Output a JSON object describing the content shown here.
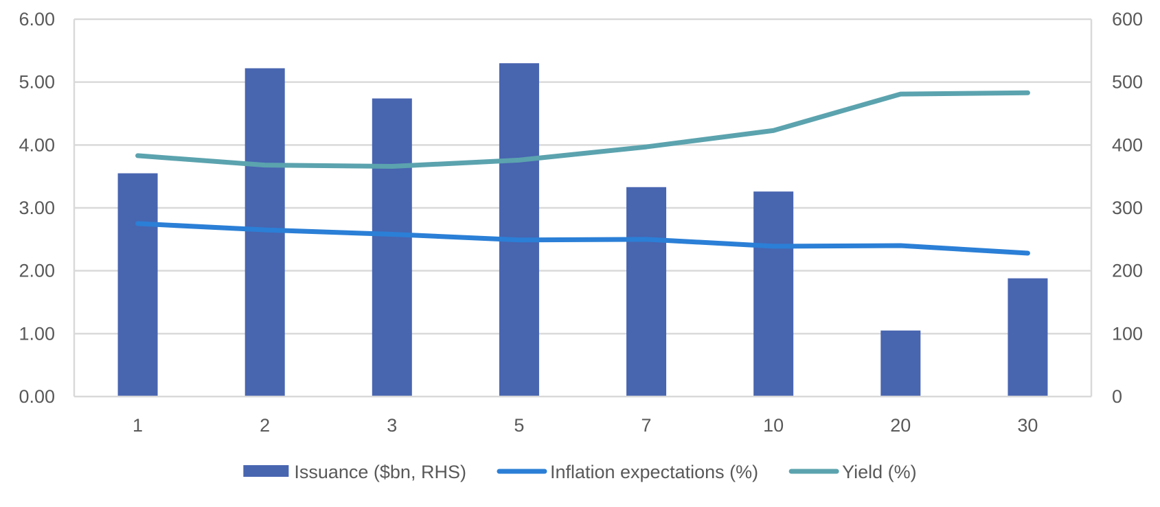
{
  "chart_data": {
    "type": "bar",
    "categories": [
      "1",
      "2",
      "3",
      "5",
      "7",
      "10",
      "20",
      "30"
    ],
    "series": [
      {
        "name": "Issuance ($bn, RHS)",
        "type": "bar",
        "axis": "right",
        "color": "#4865B0",
        "values": [
          355,
          522,
          474,
          530,
          333,
          326,
          105,
          188
        ]
      },
      {
        "name": "Inflation expectations (%)",
        "type": "line",
        "axis": "left",
        "color": "#2B7FD6",
        "values": [
          2.75,
          2.65,
          2.58,
          2.49,
          2.5,
          2.39,
          2.4,
          2.28
        ]
      },
      {
        "name": "Yield (%)",
        "type": "line",
        "axis": "left",
        "color": "#5BA3AE",
        "values": [
          3.83,
          3.68,
          3.66,
          3.76,
          3.97,
          4.23,
          4.81,
          4.83
        ]
      }
    ],
    "y_left": {
      "ylim": [
        0,
        6
      ],
      "ticks": [
        "0.00",
        "1.00",
        "2.00",
        "3.00",
        "4.00",
        "5.00",
        "6.00"
      ]
    },
    "y_right": {
      "ylim": [
        0,
        600
      ],
      "ticks": [
        "0",
        "100",
        "200",
        "300",
        "400",
        "500",
        "600"
      ]
    },
    "grid": true,
    "legend_position": "bottom"
  }
}
